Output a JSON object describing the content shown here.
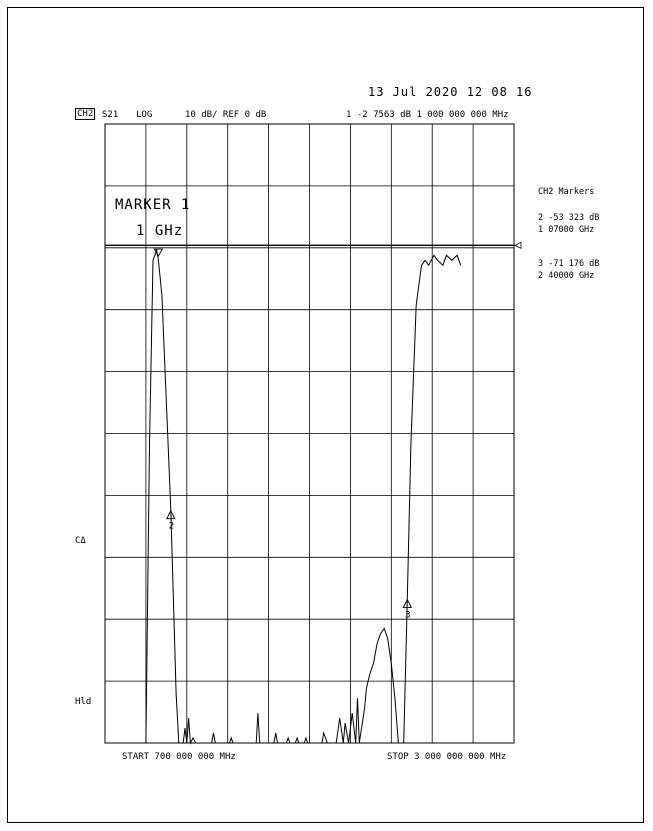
{
  "header": {
    "datetime": "13 Jul 2020   12 08 16",
    "channel": "CH2",
    "param": "S21",
    "format": "LOG",
    "scale_ref": "10 dB/ REF 0 dB",
    "marker_readout": "1 -2 7563 dB   1 000 000 000 MHz"
  },
  "marker_annotation": {
    "line1": "MARKER 1",
    "line2": "1 GHz"
  },
  "side_panel": {
    "title": "CH2 Markers",
    "markers": [
      {
        "value": "2 -53 323 dB",
        "freq": "1 07000 GHz"
      },
      {
        "value": "3 -71 176 dB",
        "freq": "2 40000 GHz"
      }
    ]
  },
  "left_labels": {
    "ca": "CΔ",
    "hld": "Hld"
  },
  "footer": {
    "start": "START  700 000 000 MHz",
    "stop": "STOP 3 000 000 000 MHz"
  },
  "chart_data": {
    "type": "line",
    "x_unit": "GHz",
    "y_unit": "dB",
    "xlim": [
      0.7,
      3.0
    ],
    "ylim": [
      -100,
      0
    ],
    "x_divisions": 10,
    "y_divisions": 10,
    "reference_level_db": 0,
    "grid": true,
    "trace": [
      [
        0.7,
        -100
      ],
      [
        0.93,
        -100
      ],
      [
        0.95,
        -40
      ],
      [
        0.97,
        -3
      ],
      [
        0.99,
        -1
      ],
      [
        1.0,
        -2.8
      ],
      [
        1.02,
        -10
      ],
      [
        1.07,
        -53
      ],
      [
        1.1,
        -90
      ],
      [
        1.115,
        -100
      ],
      [
        1.14,
        -100
      ],
      [
        1.15,
        -97
      ],
      [
        1.16,
        -100
      ],
      [
        1.17,
        -95
      ],
      [
        1.18,
        -100
      ],
      [
        1.195,
        -99
      ],
      [
        1.21,
        -100
      ],
      [
        1.3,
        -100
      ],
      [
        1.31,
        -98
      ],
      [
        1.32,
        -100
      ],
      [
        1.4,
        -100
      ],
      [
        1.41,
        -99
      ],
      [
        1.42,
        -100
      ],
      [
        1.55,
        -100
      ],
      [
        1.56,
        -94
      ],
      [
        1.57,
        -100
      ],
      [
        1.65,
        -100
      ],
      [
        1.66,
        -98
      ],
      [
        1.67,
        -100
      ],
      [
        1.72,
        -100
      ],
      [
        1.73,
        -99
      ],
      [
        1.74,
        -100
      ],
      [
        1.77,
        -100
      ],
      [
        1.78,
        -99
      ],
      [
        1.79,
        -100
      ],
      [
        1.82,
        -100
      ],
      [
        1.83,
        -99
      ],
      [
        1.84,
        -100
      ],
      [
        1.92,
        -100
      ],
      [
        1.93,
        -98
      ],
      [
        1.95,
        -100
      ],
      [
        2.0,
        -100
      ],
      [
        2.02,
        -95
      ],
      [
        2.04,
        -100
      ],
      [
        2.05,
        -96
      ],
      [
        2.07,
        -100
      ],
      [
        2.09,
        -94
      ],
      [
        2.11,
        -100
      ],
      [
        2.12,
        -91
      ],
      [
        2.13,
        -100
      ],
      [
        2.16,
        -93
      ],
      [
        2.17,
        -89
      ],
      [
        2.19,
        -86
      ],
      [
        2.21,
        -84
      ],
      [
        2.23,
        -80
      ],
      [
        2.25,
        -78
      ],
      [
        2.27,
        -77
      ],
      [
        2.29,
        -79
      ],
      [
        2.31,
        -84
      ],
      [
        2.33,
        -91
      ],
      [
        2.35,
        -100
      ],
      [
        2.38,
        -100
      ],
      [
        2.4,
        -71
      ],
      [
        2.42,
        -40
      ],
      [
        2.45,
        -12
      ],
      [
        2.48,
        -4
      ],
      [
        2.5,
        -3
      ],
      [
        2.52,
        -4
      ],
      [
        2.55,
        -2
      ],
      [
        2.57,
        -3
      ],
      [
        2.6,
        -4
      ],
      [
        2.62,
        -2
      ],
      [
        2.65,
        -3
      ],
      [
        2.68,
        -2
      ],
      [
        2.7,
        -4
      ]
    ],
    "markers": [
      {
        "id": "1",
        "x": 1.0,
        "y": -2.7563
      },
      {
        "id": "2",
        "x": 1.07,
        "y": -53.323
      },
      {
        "id": "3",
        "x": 2.4,
        "y": -71.176
      }
    ]
  }
}
